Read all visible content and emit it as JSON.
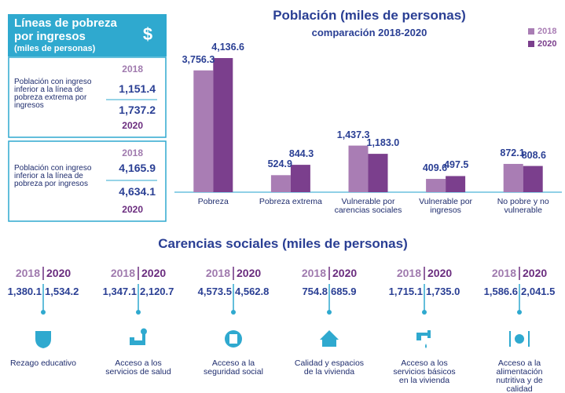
{
  "lineas": {
    "title": "Líneas de pobreza por ingresos",
    "unit": "(miles de personas)",
    "icon": "$",
    "blocks": [
      {
        "year_a": "2018",
        "label": "Población con ingreso inferior a la línea de pobreza extrema por ingresos",
        "value_a": "1,151.4",
        "value_b": "1,737.2",
        "year_b": "2020"
      },
      {
        "year_a": "2018",
        "label": "Población con ingreso inferior a la línea de pobreza por ingresos",
        "value_a": "4,165.9",
        "value_b": "4,634.1",
        "year_b": "2020"
      }
    ]
  },
  "chart_data": {
    "type": "bar",
    "title": "Población (miles de personas)",
    "subtitle": "comparación 2018-2020",
    "categories": [
      "Pobreza",
      "Pobreza extrema",
      "Vulnerable por carencias sociales",
      "Vulnerable por ingresos",
      "No pobre y no vulnerable"
    ],
    "series": [
      {
        "name": "2018",
        "color": "#a97db4",
        "values": [
          3756.3,
          524.9,
          1437.3,
          409.6,
          872.1
        ],
        "value_labels": [
          "3,756.3",
          "524.9",
          "1,437.3",
          "409.6",
          "872.1"
        ]
      },
      {
        "name": "2020",
        "color": "#7b3f8d",
        "values": [
          4136.6,
          844.3,
          1183.0,
          497.5,
          808.6
        ],
        "value_labels": [
          "4,136.6",
          "844.3",
          "1,183.0",
          "497.5",
          "808.6"
        ]
      }
    ],
    "ylim": [
      0,
      4500
    ],
    "legend": "top-right"
  },
  "carencias": {
    "title": "Carencias sociales (miles de personas)",
    "items": [
      {
        "year_a": "2018",
        "year_b": "2020",
        "value_a": "1,380.1",
        "value_b": "1,534.2",
        "label": "Rezago educativo"
      },
      {
        "year_a": "2018",
        "year_b": "2020",
        "value_a": "1,347.1",
        "value_b": "2,120.7",
        "label": "Acceso a los servicios de salud"
      },
      {
        "year_a": "2018",
        "year_b": "2020",
        "value_a": "4,573.5",
        "value_b": "4,562.8",
        "label": "Acceso a la seguridad social"
      },
      {
        "year_a": "2018",
        "year_b": "2020",
        "value_a": "754.8",
        "value_b": "685.9",
        "label": "Calidad y espacios de la vivienda"
      },
      {
        "year_a": "2018",
        "year_b": "2020",
        "value_a": "1,715.1",
        "value_b": "1,735.0",
        "label": "Acceso a los servicios básicos en la vivienda"
      },
      {
        "year_a": "2018",
        "year_b": "2020",
        "value_a": "1,586.6",
        "value_b": "2,041.5",
        "label": "Acceso a la alimentación nutritiva y de calidad"
      }
    ]
  }
}
